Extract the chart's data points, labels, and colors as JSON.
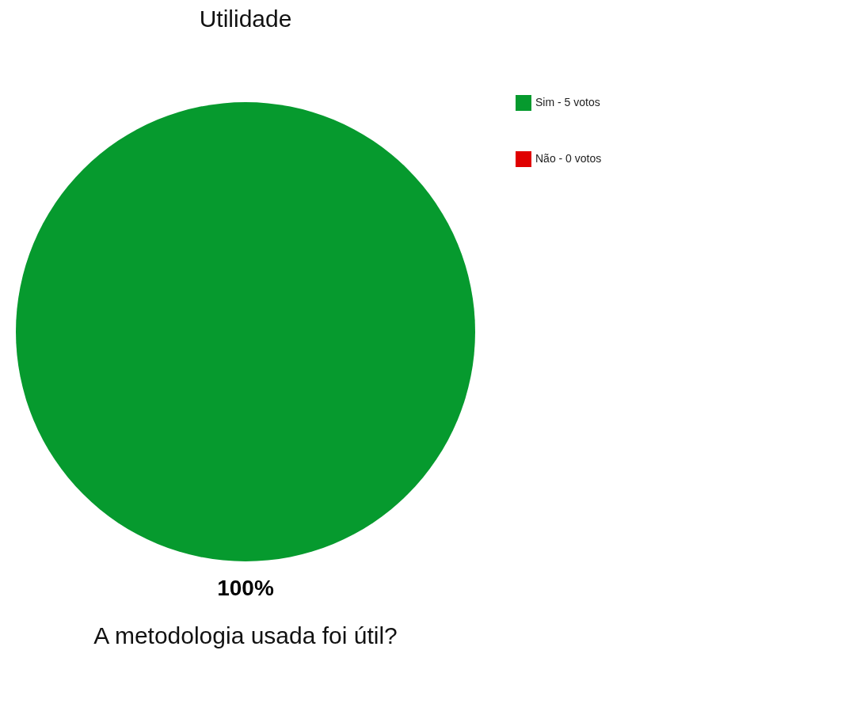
{
  "chart_data": {
    "type": "pie",
    "title": "Utilidade",
    "categories": [
      "Sim - 5 votos",
      "Não - 0 votos"
    ],
    "values": [
      100,
      0
    ],
    "colors": [
      "#069a2e",
      "#e00000"
    ],
    "value_labels": [
      "100%",
      null
    ],
    "legend": "right",
    "annotations": [
      "A metodologia usada foi útil?"
    ]
  }
}
